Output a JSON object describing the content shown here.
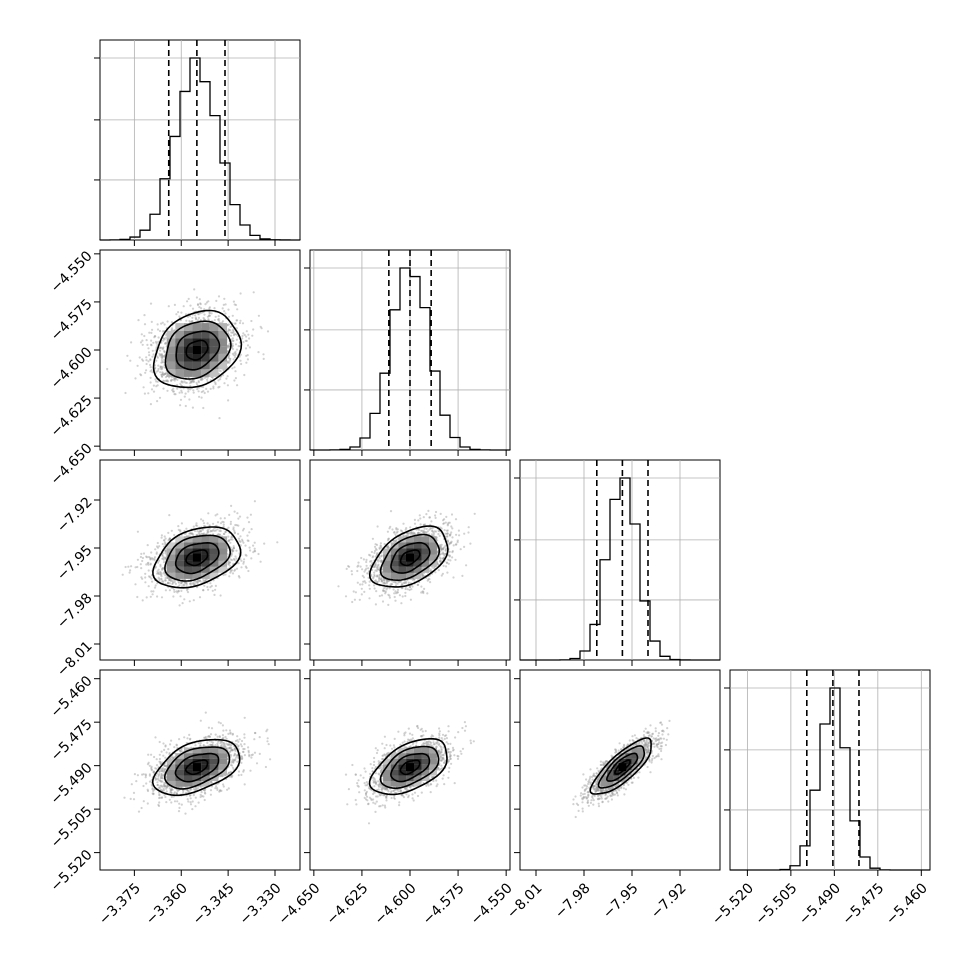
{
  "chart_data": {
    "type": "corner",
    "n_params": 4,
    "colors": {
      "line": "#000000",
      "grid": "#b0b0b0",
      "scatter": "#9a9a9a",
      "density_high": "#000000",
      "density_low": "#ffffff"
    },
    "params": [
      {
        "mean": -3.355,
        "sd": 0.0069,
        "range": [
          -3.386,
          -3.322
        ],
        "quantiles": [
          -3.364,
          -3.355,
          -3.346
        ],
        "ticks": [
          -3.375,
          -3.36,
          -3.345,
          -3.33
        ],
        "tick_labels": [
          "−3.375",
          "−3.360",
          "−3.345",
          "−3.330"
        ]
      },
      {
        "mean": -4.6,
        "sd": 0.01,
        "range": [
          -4.652,
          -4.548
        ],
        "quantiles": [
          -4.611,
          -4.6,
          -4.589
        ],
        "ticks": [
          -4.65,
          -4.625,
          -4.6,
          -4.575,
          -4.55
        ],
        "tick_labels": [
          "−4.650",
          "−4.625",
          "−4.600",
          "−4.575",
          "−4.550"
        ]
      },
      {
        "mean": -7.956,
        "sd": 0.0095,
        "range": [
          -8.02,
          -7.895
        ],
        "quantiles": [
          -7.972,
          -7.956,
          -7.94
        ],
        "ticks": [
          -8.01,
          -7.98,
          -7.95,
          -7.92
        ],
        "tick_labels": [
          "−8.01",
          "−7.98",
          "−7.95",
          "−7.92"
        ]
      },
      {
        "mean": -5.4905,
        "sd": 0.0048,
        "range": [
          -5.526,
          -5.457
        ],
        "quantiles": [
          -5.4995,
          -5.4905,
          -5.4815
        ],
        "ticks": [
          -5.52,
          -5.505,
          -5.49,
          -5.475,
          -5.46
        ],
        "tick_labels": [
          "−5.520",
          "−5.505",
          "−5.490",
          "−5.475",
          "−5.460"
        ]
      }
    ],
    "correlations": [
      [
        1.0,
        0.25,
        0.35,
        0.45
      ],
      [
        0.25,
        1.0,
        0.45,
        0.5
      ],
      [
        0.35,
        0.45,
        1.0,
        0.8
      ],
      [
        0.45,
        0.5,
        0.8,
        1.0
      ]
    ],
    "hist_bins": 20,
    "contour_levels_sigma": [
      0.5,
      1.0,
      1.5,
      2.0
    ],
    "xlabel": "",
    "ylabel": "",
    "grid": true
  }
}
